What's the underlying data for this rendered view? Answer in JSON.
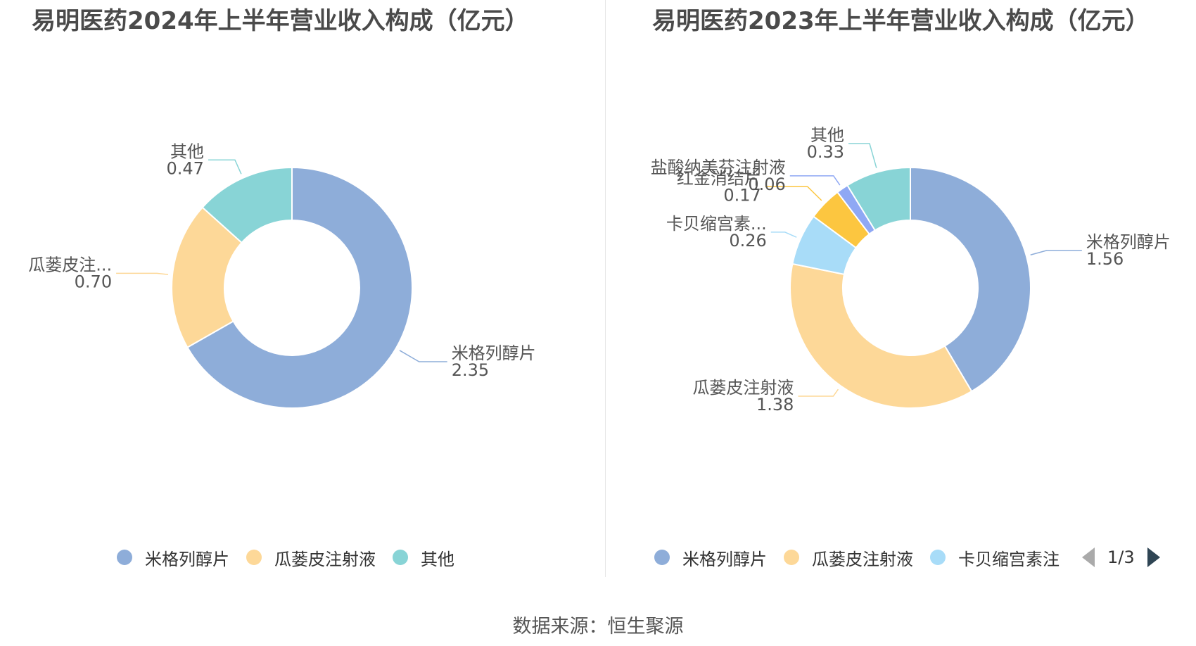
{
  "source_text": "数据来源：恒生聚源",
  "colors": {
    "米格列醇片": "#8eadd9",
    "瓜蒌皮注射液": "#fdd898",
    "其他": "#88d4d6",
    "卡贝缩宫素注": "#a8dcf8",
    "红金消结片": "#fcc640",
    "盐酸纳美芬注射液": "#8fa8f4"
  },
  "chart_data": [
    {
      "type": "pie",
      "variant": "donut",
      "title": "易明医药2024年上半年营业收入构成（亿元）",
      "unit": "亿元",
      "slices": [
        {
          "name": "米格列醇片",
          "label": "米格列醇片",
          "value": 2.35,
          "value_text": "2.35"
        },
        {
          "name": "瓜蒌皮注射液",
          "label": "瓜蒌皮注...",
          "value": 0.7,
          "value_text": "0.70"
        },
        {
          "name": "其他",
          "label": "其他",
          "value": 0.47,
          "value_text": "0.47"
        }
      ],
      "legend": [
        {
          "name": "米格列醇片",
          "label": "米格列醇片"
        },
        {
          "name": "瓜蒌皮注射液",
          "label": "瓜蒌皮注射液"
        },
        {
          "name": "其他",
          "label": "其他"
        }
      ],
      "legend_position": "bottom"
    },
    {
      "type": "pie",
      "variant": "donut",
      "title": "易明医药2023年上半年营业收入构成（亿元）",
      "unit": "亿元",
      "slices": [
        {
          "name": "米格列醇片",
          "label": "米格列醇片",
          "value": 1.56,
          "value_text": "1.56"
        },
        {
          "name": "瓜蒌皮注射液",
          "label": "瓜蒌皮注射液",
          "value": 1.38,
          "value_text": "1.38"
        },
        {
          "name": "卡贝缩宫素注",
          "label": "卡贝缩宫素...",
          "value": 0.26,
          "value_text": "0.26"
        },
        {
          "name": "红金消结片",
          "label": "红金消结片",
          "value": 0.17,
          "value_text": "0.17"
        },
        {
          "name": "盐酸纳美芬注射液",
          "label": "盐酸纳美芬注射液",
          "value": 0.06,
          "value_text": "0.06"
        },
        {
          "name": "其他",
          "label": "其他",
          "value": 0.33,
          "value_text": "0.33"
        }
      ],
      "legend": [
        {
          "name": "米格列醇片",
          "label": "米格列醇片"
        },
        {
          "name": "瓜蒌皮注射液",
          "label": "瓜蒌皮注射液"
        },
        {
          "name": "卡贝缩宫素注",
          "label": "卡贝缩宫素注"
        }
      ],
      "legend_position": "bottom",
      "legend_page": "1/3"
    }
  ]
}
